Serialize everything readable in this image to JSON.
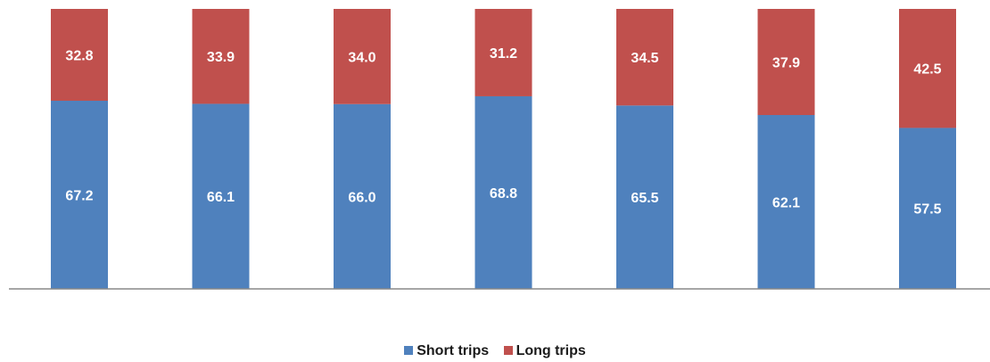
{
  "chart_data": {
    "type": "bar",
    "stacked": true,
    "percent_stacked": true,
    "categories": [
      "",
      "",
      "",
      "",
      "",
      "",
      ""
    ],
    "series": [
      {
        "name": "Short trips",
        "color": "#4F81BD",
        "values": [
          67.2,
          66.1,
          66.0,
          68.8,
          65.5,
          62.1,
          57.5
        ]
      },
      {
        "name": "Long trips",
        "color": "#C0504D",
        "values": [
          32.8,
          33.9,
          34.0,
          31.2,
          34.5,
          37.9,
          42.5
        ]
      }
    ],
    "ylim": [
      0,
      100
    ],
    "grid": false,
    "legend_position": "bottom",
    "data_labels": true
  },
  "legend": {
    "short_label": "Short trips",
    "long_label": "Long trips"
  }
}
